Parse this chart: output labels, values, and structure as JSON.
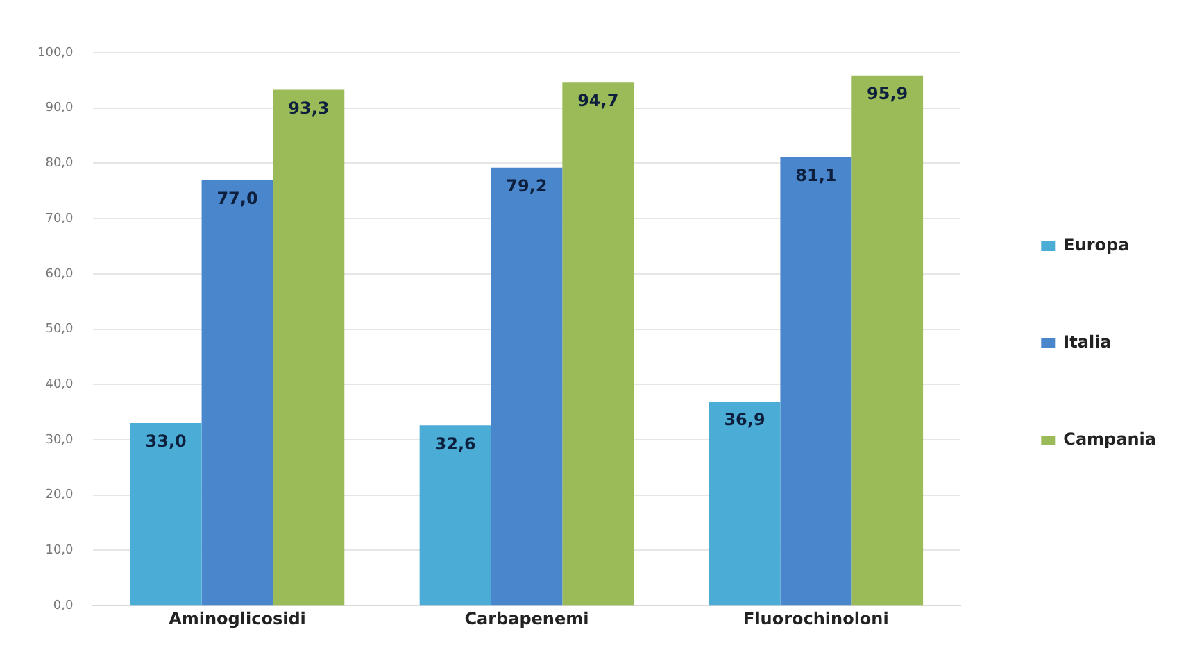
{
  "chart_data": {
    "type": "bar",
    "categories": [
      "Aminoglicosidi",
      "Carbapenemi",
      "Fluorochinoloni"
    ],
    "series": [
      {
        "name": "Europa",
        "color": "#4bacd6",
        "values": [
          33.0,
          32.6,
          36.9
        ],
        "value_labels": [
          "33,0",
          "32,6",
          "36,9"
        ]
      },
      {
        "name": "Italia",
        "color": "#4a86cc",
        "values": [
          77.0,
          79.2,
          81.1
        ],
        "value_labels": [
          "77,0",
          "79,2",
          "81,1"
        ]
      },
      {
        "name": "Campania",
        "color": "#9bbb59",
        "values": [
          93.3,
          94.7,
          95.9
        ],
        "value_labels": [
          "93,3",
          "94,7",
          "95,9"
        ]
      }
    ],
    "ylim": [
      0,
      100
    ],
    "yticks": [
      {
        "value": 0,
        "label": "0,0"
      },
      {
        "value": 10,
        "label": "10,0"
      },
      {
        "value": 20,
        "label": "20,0"
      },
      {
        "value": 30,
        "label": "30,0"
      },
      {
        "value": 40,
        "label": "40,0"
      },
      {
        "value": 50,
        "label": "50,0"
      },
      {
        "value": 60,
        "label": "60,0"
      },
      {
        "value": 70,
        "label": "70,0"
      },
      {
        "value": 80,
        "label": "80,0"
      },
      {
        "value": 90,
        "label": "90,0"
      },
      {
        "value": 100,
        "label": "100,0"
      }
    ],
    "grid": "y",
    "legend": "right"
  }
}
